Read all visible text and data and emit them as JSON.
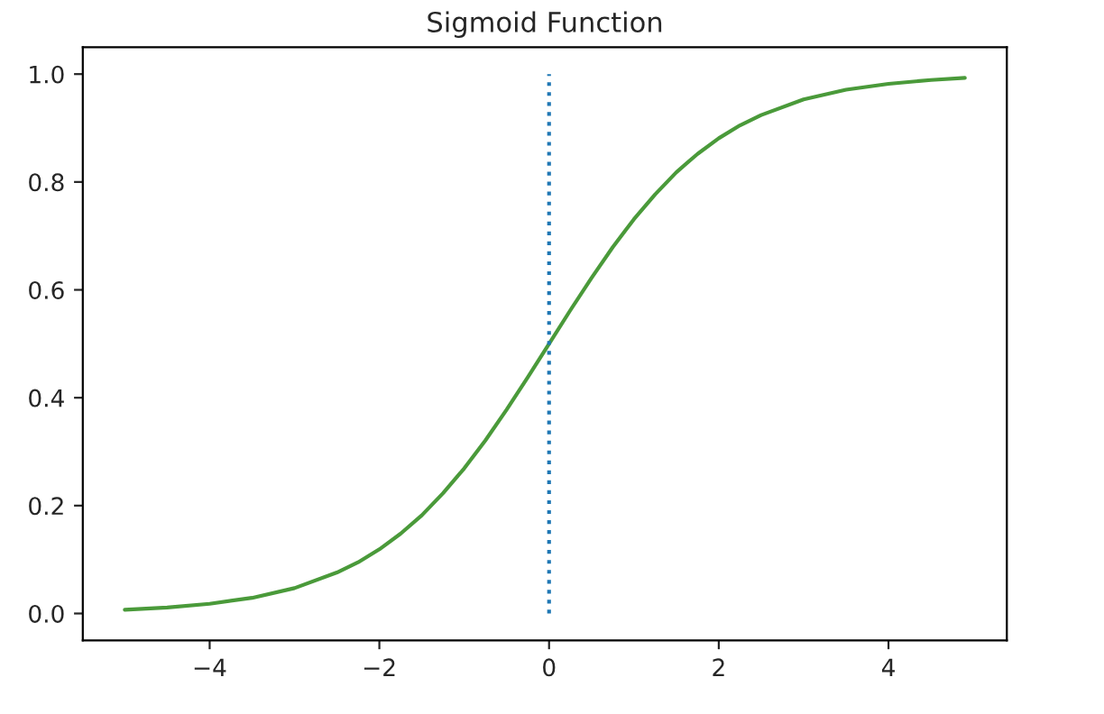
{
  "chart_data": {
    "type": "line",
    "title": "Sigmoid Function",
    "series": [
      {
        "color": "#4a9a3a",
        "line_style": "solid",
        "x": [
          -5,
          -4.5,
          -4,
          -3.5,
          -3,
          -2.5,
          -2.25,
          -2,
          -1.75,
          -1.5,
          -1.25,
          -1,
          -0.75,
          -0.5,
          -0.25,
          0,
          0.25,
          0.5,
          0.75,
          1,
          1.25,
          1.5,
          1.75,
          2,
          2.25,
          2.5,
          3,
          3.5,
          4,
          4.5,
          4.9
        ],
        "values": [
          0.007,
          0.011,
          0.018,
          0.029,
          0.047,
          0.076,
          0.095,
          0.119,
          0.148,
          0.182,
          0.223,
          0.269,
          0.321,
          0.378,
          0.438,
          0.5,
          0.562,
          0.622,
          0.679,
          0.731,
          0.777,
          0.818,
          0.852,
          0.881,
          0.905,
          0.924,
          0.953,
          0.971,
          0.982,
          0.989,
          0.993
        ]
      },
      {
        "color": "#1f77b4",
        "line_style": "dotted",
        "x": [
          0,
          0
        ],
        "values": [
          0,
          1
        ]
      }
    ],
    "xlim": [
      -5.495,
      5.395
    ],
    "ylim": [
      -0.05,
      1.05
    ],
    "xticks": [
      {
        "value": -4,
        "label": "−4"
      },
      {
        "value": -2,
        "label": "−2"
      },
      0,
      2,
      4
    ],
    "yticks": [
      {
        "value": 0,
        "label": "0.0"
      },
      {
        "value": 0.2,
        "label": "0.2"
      },
      {
        "value": 0.4,
        "label": "0.4"
      },
      {
        "value": 0.6,
        "label": "0.6"
      },
      {
        "value": 0.8,
        "label": "0.8"
      },
      {
        "value": 1,
        "label": "1.0"
      }
    ],
    "grid": false
  }
}
